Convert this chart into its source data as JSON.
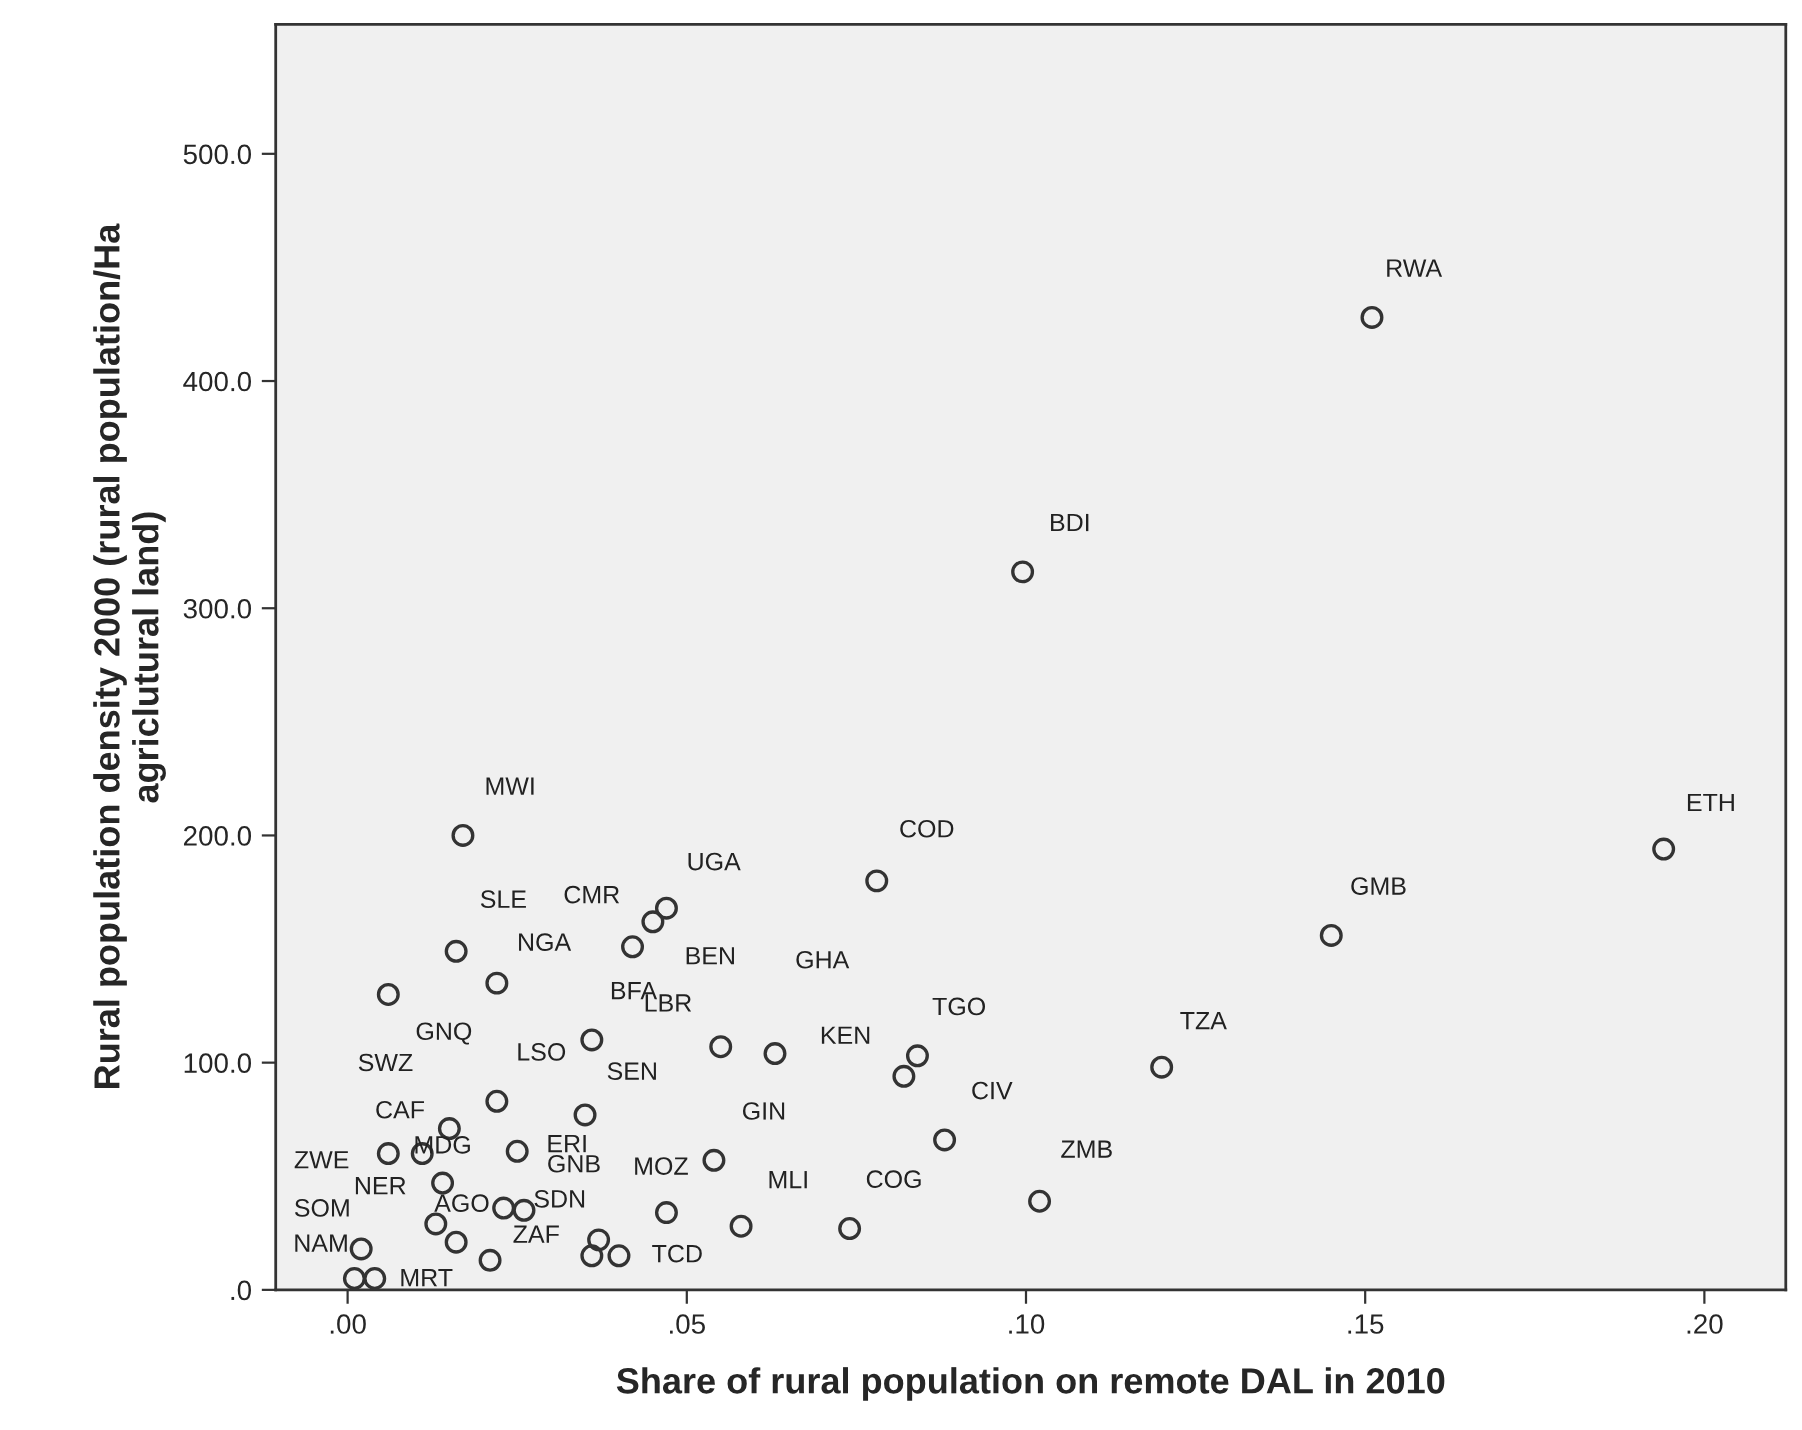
{
  "chart_data": {
    "type": "scatter",
    "xlabel": "Share of rural population on remote DAL in 2010",
    "ylabel": "Rural population density 2000 (rural population/Ha\nagriclutural land)",
    "xlim": [
      -0.0106,
      0.212
    ],
    "xticks": [
      {
        "value": 0,
        "label": ".00"
      },
      {
        "value": 0.05,
        "label": ".05"
      },
      {
        "value": 0.1,
        "label": ".10"
      },
      {
        "value": 0.15,
        "label": ".15"
      },
      {
        "value": 0.2,
        "label": ".20"
      }
    ],
    "ylim": [
      0,
      557
    ],
    "yticks": [
      {
        "value": 0,
        "label": ".0"
      },
      {
        "value": 100,
        "label": "100.0"
      },
      {
        "value": 200,
        "label": "200.0"
      },
      {
        "value": 300,
        "label": "300.0"
      },
      {
        "value": 400,
        "label": "400.0"
      },
      {
        "value": 500,
        "label": "500.0"
      }
    ],
    "grid": false,
    "legend": false,
    "marker": "circle",
    "series": [
      {
        "color": "#333333",
        "x": [
          0.151,
          0.0995,
          0.194,
          0.145,
          0.078,
          0.12,
          0.017,
          0.016,
          0.022,
          0.006,
          0.047,
          0.045,
          0.042,
          0.036,
          0.055,
          0.063,
          0.022,
          0.035,
          0.015,
          0.011,
          0.006,
          0.025,
          0.026,
          0.014,
          0.013,
          0.023,
          0.037,
          0.036,
          0.04,
          0.021,
          0.002,
          0.001,
          0.004,
          0.016,
          0.047,
          0.054,
          0.058,
          0.084,
          0.082,
          0.088,
          0.102,
          0.074
        ],
        "values": [
          428,
          316,
          194,
          156,
          180,
          98,
          200,
          149,
          135,
          130,
          168,
          162,
          151,
          110,
          107,
          104,
          83,
          77,
          71,
          60,
          60,
          61,
          35,
          47,
          29,
          36,
          22,
          15,
          15,
          13,
          18,
          5,
          5,
          21,
          34,
          57,
          28,
          103,
          94,
          66,
          39,
          27
        ],
        "value_labels": [
          "RWA",
          "BDI",
          "ETH",
          "GMB",
          "COD",
          "TZA",
          "MWI",
          "SLE",
          "NGA",
          "GNQ",
          "UGA",
          "CMR",
          "BEN",
          "BFA",
          "LBR",
          "GHA",
          "LSO",
          "SEN",
          "SWZ",
          "CAF",
          "ZWE",
          "ERI",
          "GNB",
          "MDG",
          "NER",
          "AGO",
          "SDN",
          "ZAF",
          "TCD",
          "MRT",
          "SOM",
          "NAM",
          null,
          null,
          "MOZ",
          "GIN",
          "MLI",
          "TGO",
          "KEN",
          "CIV",
          "ZMB",
          "COG"
        ]
      }
    ]
  }
}
